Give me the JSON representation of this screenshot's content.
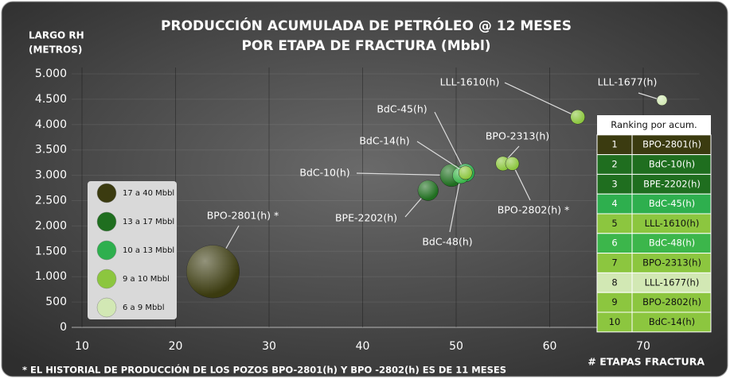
{
  "chart_data": {
    "type": "bubble",
    "title": "PRODUCCIÓN ACUMULADA DE PETRÓLEO @ 12 MESES",
    "subtitle": "POR ETAPA DE FRACTURA (Mbbl)",
    "ylabel": [
      "LARGO RH",
      "(METROS)"
    ],
    "xlabel": "# ETAPAS FRACTURA",
    "footnote": "* EL HISTORIAL DE PRODUCCIÓN DE LOS POZOS BPO-2801(h) Y BPO -2802(h) ES DE 11 MESES",
    "labels": [
      "BPO-2801(h) *",
      "BPE-2202(h)",
      "BdC-10(h)",
      "BdC-45(h)",
      "LLL-1610(h)",
      "BdC-48(h)",
      "BPO-2313(h)",
      "LLL-1677(h)",
      "BPO-2802(h) *",
      "BdC-14(h)"
    ],
    "x": [
      24,
      47,
      49.5,
      51,
      63,
      50.5,
      55,
      72,
      56,
      51
    ],
    "values": [
      1100,
      2700,
      3000,
      3050,
      4150,
      3000,
      3230,
      4480,
      3230,
      3050
    ],
    "sizes": [
      35,
      13.5,
      15,
      12,
      9.5,
      11,
      9.5,
      7,
      9,
      9
    ],
    "colors": [
      "#3b3b10",
      "#1f6e1f",
      "#1f6e1f",
      "#2eaf4e",
      "#8cc63f",
      "#3cb64b",
      "#8cc63f",
      "#d2e8b4",
      "#8cc63f",
      "#8cc63f"
    ],
    "xlim": [
      10,
      76
    ],
    "ylim": [
      0,
      5000
    ],
    "xticks": [
      10,
      20,
      30,
      40,
      50,
      60,
      70
    ],
    "yticks": [
      0,
      500,
      {
        "value": 1000,
        "label": "1.000"
      },
      {
        "value": 1500,
        "label": "1.500"
      },
      {
        "value": 2000,
        "label": "2.000"
      },
      {
        "value": 2500,
        "label": "2.500"
      },
      {
        "value": 3000,
        "label": "3.000"
      },
      {
        "value": 3500,
        "label": "3.500"
      },
      {
        "value": 4000,
        "label": "4.000"
      },
      {
        "value": 4500,
        "label": "4.500"
      },
      {
        "value": 5000,
        "label": "5.000"
      }
    ],
    "grid": true,
    "legend": [
      {
        "label": "17 a 40 Mbbl",
        "color": "#3b3b10"
      },
      {
        "label": "13 a 17 Mbbl",
        "color": "#1f6e1f"
      },
      {
        "label": "10 a 13 Mbbl",
        "color": "#2eaf4e"
      },
      {
        "label": "9 a 10 Mbbl",
        "color": "#8cc63f"
      },
      {
        "label": "6 a 9 Mbbl",
        "color": "#d2e8b4"
      }
    ],
    "ranking": {
      "title": "Ranking por acum.",
      "rows": [
        {
          "rank": "1",
          "name": "BPO-2801(h)",
          "color": "#3b3b10"
        },
        {
          "rank": "2",
          "name": "BdC-10(h)",
          "color": "#1f6e1f"
        },
        {
          "rank": "3",
          "name": "BPE-2202(h)",
          "color": "#1f6e1f"
        },
        {
          "rank": "4",
          "name": "BdC-45(h)",
          "color": "#2eaf4e"
        },
        {
          "rank": "5",
          "name": "LLL-1610(h)",
          "color": "#8cc63f"
        },
        {
          "rank": "6",
          "name": "BdC-48(h)",
          "color": "#3cb64b"
        },
        {
          "rank": "7",
          "name": "BPO-2313(h)",
          "color": "#8cc63f"
        },
        {
          "rank": "8",
          "name": "LLL-1677(h)",
          "color": "#d2e8b4"
        },
        {
          "rank": "9",
          "name": "BPO-2802(h)",
          "color": "#8cc63f"
        },
        {
          "rank": "10",
          "name": "BdC-14(h)",
          "color": "#8cc63f"
        }
      ]
    }
  }
}
